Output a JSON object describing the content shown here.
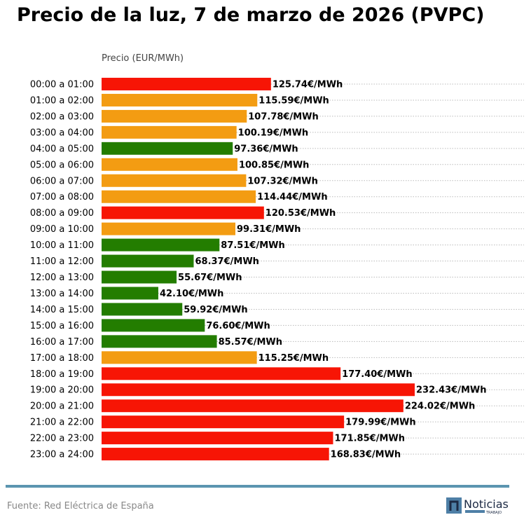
{
  "chart_data": {
    "type": "bar",
    "orientation": "horizontal",
    "title": "Precio de la luz, 7 de marzo de 2026 (PVPC)",
    "xlabel": "Precio (EUR/MWh)",
    "ylabel": "",
    "xlim": [
      0,
      313
    ],
    "grid": "horizontal dotted",
    "value_suffix": "€/MWh",
    "categories": [
      "00:00 a 01:00",
      "01:00 a 02:00",
      "02:00 a 03:00",
      "03:00 a 04:00",
      "04:00 a 05:00",
      "05:00 a 06:00",
      "06:00 a 07:00",
      "07:00 a 08:00",
      "08:00 a 09:00",
      "09:00 a 10:00",
      "10:00 a 11:00",
      "11:00 a 12:00",
      "12:00 a 13:00",
      "13:00 a 14:00",
      "14:00 a 15:00",
      "15:00 a 16:00",
      "16:00 a 17:00",
      "17:00 a 18:00",
      "18:00 a 19:00",
      "19:00 a 20:00",
      "20:00 a 21:00",
      "21:00 a 22:00",
      "22:00 a 23:00",
      "23:00 a 24:00"
    ],
    "values": [
      125.74,
      115.59,
      107.78,
      100.19,
      97.36,
      100.85,
      107.32,
      114.44,
      120.53,
      99.31,
      87.51,
      68.37,
      55.67,
      42.1,
      59.92,
      76.6,
      85.57,
      115.25,
      177.4,
      232.43,
      224.02,
      179.99,
      171.85,
      168.83
    ],
    "levels": [
      "high",
      "mid",
      "mid",
      "mid",
      "low",
      "mid",
      "mid",
      "mid",
      "high",
      "mid",
      "low",
      "low",
      "low",
      "low",
      "low",
      "low",
      "low",
      "mid",
      "high",
      "high",
      "high",
      "high",
      "high",
      "high"
    ],
    "level_colors": {
      "high": "#f71505",
      "mid": "#f39c12",
      "low": "#237d00"
    }
  },
  "footer": {
    "source": "Fuente: Red Eléctrica de España",
    "logo_text": "Noticias",
    "logo_subtext": "TRABAJO",
    "rule_color": "#5b95b0"
  }
}
